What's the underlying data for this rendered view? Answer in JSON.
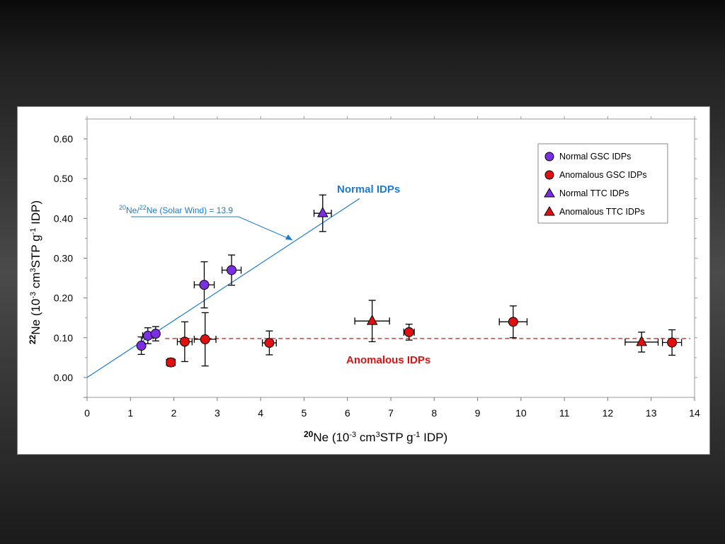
{
  "chart_data": {
    "type": "scatter",
    "xlabel_parts": {
      "sup": "20",
      "main": "Ne (10",
      "exp1": "-3",
      "mid": " cm",
      "exp2": "3",
      "mid2": "STP g",
      "exp3": "-1",
      "end": " IDP)"
    },
    "ylabel_parts": {
      "sup": "22",
      "main": "Ne (10",
      "exp1": "-3",
      "mid": " cm",
      "exp2": "3",
      "mid2": "STP g",
      "exp3": "-1",
      "end": " IDP)"
    },
    "xlim": [
      0,
      14
    ],
    "ylim": [
      -0.05,
      0.65
    ],
    "x_ticks": [
      0,
      1,
      2,
      3,
      4,
      5,
      6,
      7,
      8,
      9,
      10,
      11,
      12,
      13,
      14
    ],
    "y_ticks": [
      0.0,
      0.1,
      0.2,
      0.3,
      0.4,
      0.5,
      0.6
    ],
    "y_tick_labels": [
      "0.00",
      "0.10",
      "0.20",
      "0.30",
      "0.40",
      "0.50",
      "0.60"
    ],
    "grid": false,
    "legend_position": "top-right",
    "series": [
      {
        "name": "Normal GSC IDPs",
        "marker": "circle",
        "color": "#7b2fe0",
        "points": [
          {
            "x": 1.25,
            "y": 0.08,
            "xerr": 0.0,
            "yerr": 0.022
          },
          {
            "x": 1.4,
            "y": 0.105,
            "xerr": 0.12,
            "yerr": 0.02
          },
          {
            "x": 1.58,
            "y": 0.11,
            "xerr": 0.0,
            "yerr": 0.018
          },
          {
            "x": 2.7,
            "y": 0.233,
            "xerr": 0.23,
            "yerr": 0.058
          },
          {
            "x": 3.33,
            "y": 0.27,
            "xerr": 0.22,
            "yerr": 0.038
          }
        ]
      },
      {
        "name": "Anomalous GSC IDPs",
        "marker": "circle",
        "color": "#e01010",
        "points": [
          {
            "x": 1.93,
            "y": 0.038,
            "xerr": 0.1,
            "yerr": 0.01
          },
          {
            "x": 2.25,
            "y": 0.09,
            "xerr": 0.17,
            "yerr": 0.05
          },
          {
            "x": 2.72,
            "y": 0.096,
            "xerr": 0.25,
            "yerr": 0.067
          },
          {
            "x": 4.2,
            "y": 0.087,
            "xerr": 0.16,
            "yerr": 0.03
          },
          {
            "x": 7.42,
            "y": 0.114,
            "xerr": 0.12,
            "yerr": 0.02
          },
          {
            "x": 9.82,
            "y": 0.14,
            "xerr": 0.32,
            "yerr": 0.04
          },
          {
            "x": 13.48,
            "y": 0.088,
            "xerr": 0.22,
            "yerr": 0.032
          }
        ]
      },
      {
        "name": "Normal TTC IDPs",
        "marker": "triangle",
        "color": "#7b2fe0",
        "points": [
          {
            "x": 5.43,
            "y": 0.413,
            "xerr": 0.2,
            "yerr": 0.046
          }
        ]
      },
      {
        "name": "Anomalous TTC IDPs",
        "marker": "triangle",
        "color": "#e01010",
        "points": [
          {
            "x": 6.57,
            "y": 0.142,
            "xerr": 0.4,
            "yerr": 0.052
          },
          {
            "x": 12.78,
            "y": 0.089,
            "xerr": 0.38,
            "yerr": 0.025
          }
        ]
      }
    ],
    "reference_lines": [
      {
        "label": "Normal IDPs",
        "style": "solid",
        "color": "#1a7bd0",
        "from": [
          0,
          0.0
        ],
        "to": [
          6.28,
          0.45
        ]
      },
      {
        "label": "Anomalous IDPs",
        "style": "dashed",
        "color": "#e01010",
        "from": [
          1.8,
          0.098
        ],
        "to": [
          13.9,
          0.098
        ]
      }
    ],
    "annotations": {
      "solar_wind": {
        "sup1": "20",
        "t1": "Ne/",
        "sup2": "22",
        "t2": "Ne (Solar Wind) = 13.9"
      },
      "normal_label": "Normal IDPs",
      "anomalous_label": "Anomalous IDPs"
    }
  }
}
